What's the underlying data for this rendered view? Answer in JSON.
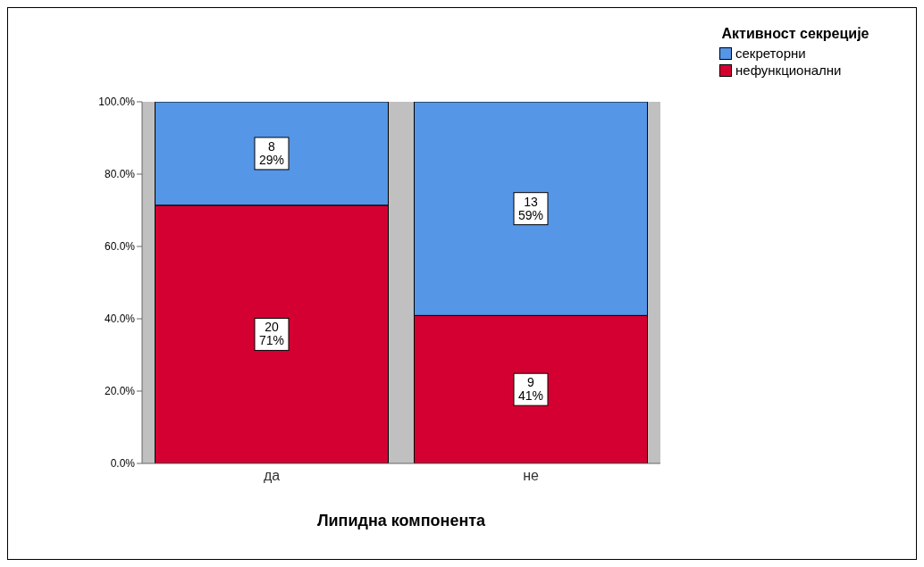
{
  "chart_data": {
    "type": "bar",
    "stacked": true,
    "xlabel": "Липидна компонента",
    "legend_title": "Активност секреције",
    "legend": "top right",
    "categories": [
      "да",
      "не"
    ],
    "series": [
      {
        "name": "нефункционални",
        "color": "#d50032",
        "values": [
          71.4,
          40.9
        ],
        "value_labels": [
          "20\n71%",
          "9\n41%"
        ]
      },
      {
        "name": "секреторни",
        "color": "#5596e6",
        "values": [
          28.6,
          59.1
        ],
        "value_labels": [
          "8\n29%",
          "13\n59%"
        ]
      }
    ],
    "ylim": [
      0,
      100
    ],
    "yticks": [
      {
        "value": 0,
        "label": "0.0%"
      },
      {
        "value": 20,
        "label": "20.0%"
      },
      {
        "value": 40,
        "label": "40.0%"
      },
      {
        "value": 60,
        "label": "60.0%"
      },
      {
        "value": 80,
        "label": "80.0%"
      },
      {
        "value": 100,
        "label": "100.0%"
      }
    ]
  }
}
